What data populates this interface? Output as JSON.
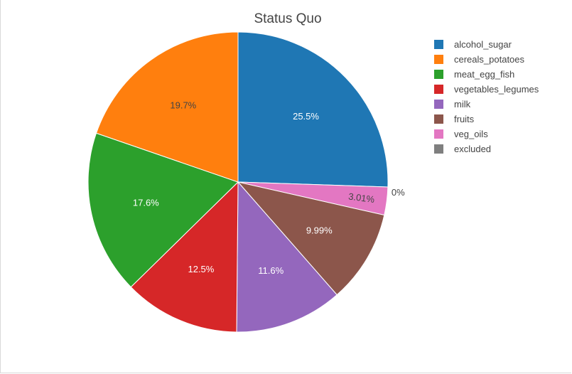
{
  "chart_data": {
    "type": "pie",
    "title": "Status Quo",
    "direction": "clockwise",
    "start_angle": "12 o'clock",
    "legend_placement": "top-right",
    "slices": [
      {
        "name": "alcohol_sugar",
        "value": 25.5,
        "label": "25.5%",
        "color": "#1f77b4",
        "label_color": "#ffffff"
      },
      {
        "name": "excluded",
        "value": 0,
        "label": "0%",
        "color": "#7f7f7f",
        "label_color": "#444444"
      },
      {
        "name": "veg_oils",
        "value": 3.01,
        "label": "3.01%",
        "color": "#e377c2",
        "label_color": "#444444"
      },
      {
        "name": "fruits",
        "value": 9.99,
        "label": "9.99%",
        "color": "#8c564b",
        "label_color": "#ffffff"
      },
      {
        "name": "milk",
        "value": 11.6,
        "label": "11.6%",
        "color": "#9467bd",
        "label_color": "#ffffff"
      },
      {
        "name": "vegetables_legumes",
        "value": 12.5,
        "label": "12.5%",
        "color": "#d62728",
        "label_color": "#ffffff"
      },
      {
        "name": "meat_egg_fish",
        "value": 17.6,
        "label": "17.6%",
        "color": "#2ca02c",
        "label_color": "#ffffff"
      },
      {
        "name": "cereals_potatoes",
        "value": 19.7,
        "label": "19.7%",
        "color": "#ff7f0e",
        "label_color": "#444444"
      }
    ],
    "legend": [
      {
        "name": "alcohol_sugar",
        "color": "#1f77b4"
      },
      {
        "name": "cereals_potatoes",
        "color": "#ff7f0e"
      },
      {
        "name": "meat_egg_fish",
        "color": "#2ca02c"
      },
      {
        "name": "vegetables_legumes",
        "color": "#d62728"
      },
      {
        "name": "milk",
        "color": "#9467bd"
      },
      {
        "name": "fruits",
        "color": "#8c564b"
      },
      {
        "name": "veg_oils",
        "color": "#e377c2"
      },
      {
        "name": "excluded",
        "color": "#7f7f7f"
      }
    ]
  }
}
